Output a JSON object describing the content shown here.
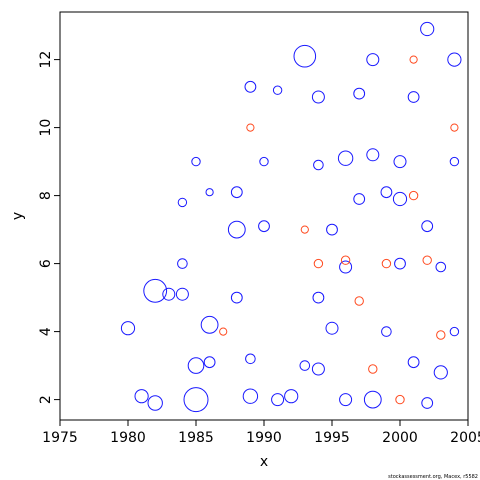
{
  "chart_data": {
    "type": "scatter",
    "title": "",
    "xlabel": "x",
    "ylabel": "y",
    "xlim": [
      1975,
      2005
    ],
    "ylim": [
      1.4,
      13.4
    ],
    "x_ticks": [
      1975,
      1980,
      1985,
      1990,
      1995,
      2000,
      2005
    ],
    "y_ticks": [
      2,
      4,
      6,
      8,
      10,
      12
    ],
    "grid": false,
    "legend": "none",
    "credit": "stockassessment.org, Macex, r5582",
    "colors": {
      "positive": "#1a1aff",
      "negative": "#ff4a1f"
    },
    "series": [
      {
        "sign": "positive",
        "marker": "open circle",
        "points": [
          [
            1980,
            4.1,
            0.55
          ],
          [
            1981,
            2.1,
            0.55
          ],
          [
            1982,
            1.9,
            0.6
          ],
          [
            1982,
            5.2,
            0.95
          ],
          [
            1983,
            5.1,
            0.5
          ],
          [
            1984,
            5.1,
            0.5
          ],
          [
            1985,
            2.0,
            1.0
          ],
          [
            1985,
            3.0,
            0.65
          ],
          [
            1986,
            4.2,
            0.7
          ],
          [
            1986,
            3.1,
            0.45
          ],
          [
            1984,
            6.0,
            0.4
          ],
          [
            1985,
            9.0,
            0.35
          ],
          [
            1984,
            7.8,
            0.35
          ],
          [
            1986,
            8.1,
            0.3
          ],
          [
            1988,
            7.0,
            0.7
          ],
          [
            1988,
            8.1,
            0.45
          ],
          [
            1988,
            5.0,
            0.45
          ],
          [
            1989,
            2.1,
            0.6
          ],
          [
            1989,
            11.2,
            0.45
          ],
          [
            1989,
            3.2,
            0.4
          ],
          [
            1990,
            7.1,
            0.45
          ],
          [
            1990,
            9.0,
            0.35
          ],
          [
            1991,
            11.1,
            0.35
          ],
          [
            1991,
            2.0,
            0.5
          ],
          [
            1992,
            2.1,
            0.55
          ],
          [
            1993,
            12.1,
            0.9
          ],
          [
            1993,
            3.0,
            0.4
          ],
          [
            1994,
            10.9,
            0.5
          ],
          [
            1994,
            2.9,
            0.5
          ],
          [
            1994,
            5.0,
            0.45
          ],
          [
            1994,
            8.9,
            0.4
          ],
          [
            1995,
            4.1,
            0.5
          ],
          [
            1995,
            7.0,
            0.45
          ],
          [
            1996,
            9.1,
            0.6
          ],
          [
            1996,
            2.0,
            0.5
          ],
          [
            1996,
            5.9,
            0.5
          ],
          [
            1997,
            11.0,
            0.45
          ],
          [
            1997,
            7.9,
            0.45
          ],
          [
            1998,
            12.0,
            0.5
          ],
          [
            1998,
            9.2,
            0.5
          ],
          [
            1998,
            2.0,
            0.7
          ],
          [
            1999,
            8.1,
            0.45
          ],
          [
            1999,
            4.0,
            0.4
          ],
          [
            2000,
            9.0,
            0.5
          ],
          [
            2000,
            7.9,
            0.55
          ],
          [
            2000,
            6.0,
            0.45
          ],
          [
            2001,
            10.9,
            0.45
          ],
          [
            2001,
            3.1,
            0.45
          ],
          [
            2002,
            12.9,
            0.55
          ],
          [
            2002,
            7.1,
            0.45
          ],
          [
            2002,
            1.9,
            0.45
          ],
          [
            2003,
            2.8,
            0.55
          ],
          [
            2003,
            5.9,
            0.4
          ],
          [
            2004,
            12.0,
            0.55
          ],
          [
            2004,
            9.0,
            0.35
          ],
          [
            2004,
            4.0,
            0.35
          ]
        ]
      },
      {
        "sign": "negative",
        "marker": "open circle",
        "points": [
          [
            1996,
            6.1,
            0.35
          ],
          [
            1997,
            4.9,
            0.35
          ],
          [
            1998,
            2.9,
            0.35
          ],
          [
            1999,
            6.0,
            0.35
          ],
          [
            2000,
            2.0,
            0.35
          ],
          [
            2001,
            12.0,
            0.3
          ],
          [
            2001,
            8.0,
            0.35
          ],
          [
            2002,
            6.1,
            0.35
          ],
          [
            2003,
            3.9,
            0.35
          ],
          [
            2004,
            10.0,
            0.3
          ],
          [
            1994,
            6.0,
            0.35
          ],
          [
            1993,
            7.0,
            0.3
          ],
          [
            1989,
            10.0,
            0.3
          ],
          [
            1987,
            4.0,
            0.3
          ]
        ]
      }
    ]
  }
}
